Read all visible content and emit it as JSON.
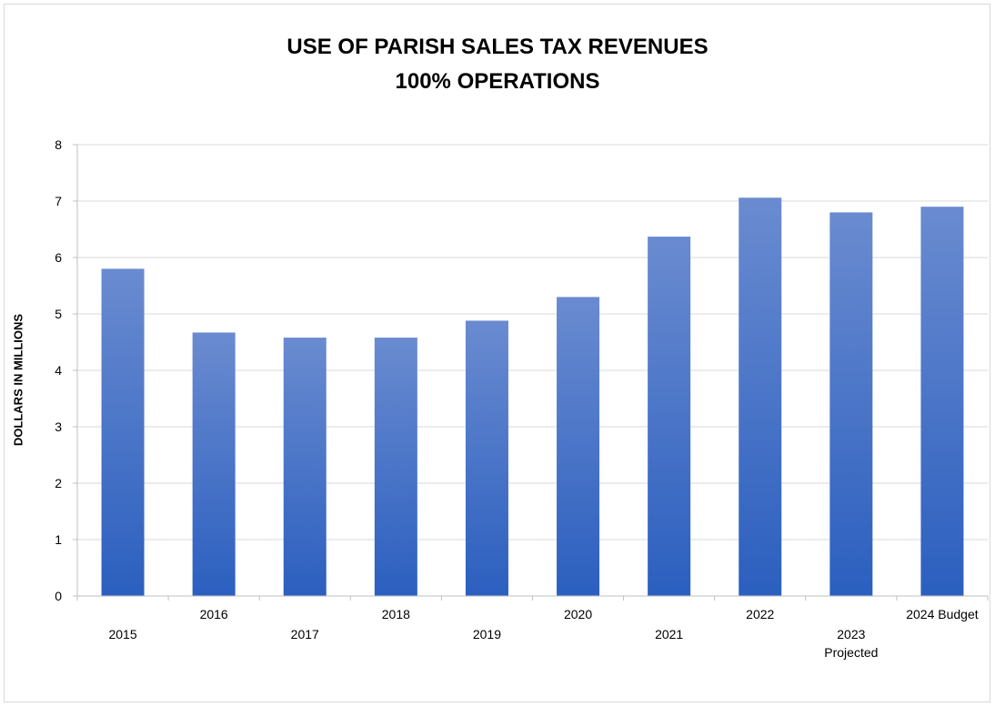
{
  "chart_data": {
    "type": "bar",
    "title": "USE OF PARISH SALES TAX REVENUES",
    "subtitle": "100% OPERATIONS",
    "xlabel": "",
    "ylabel": "DOLLARS IN MILLIONS",
    "categories": [
      [
        "2015"
      ],
      [
        "2016"
      ],
      [
        "2017"
      ],
      [
        "2018"
      ],
      [
        "2019"
      ],
      [
        "2020"
      ],
      [
        "2021"
      ],
      [
        "2022"
      ],
      [
        "2023",
        "Projected"
      ],
      [
        "2024 Budget"
      ]
    ],
    "values": [
      5.8,
      4.67,
      4.58,
      4.58,
      4.88,
      5.3,
      6.37,
      7.06,
      6.8,
      6.9
    ],
    "ylim": [
      0,
      8
    ],
    "yticks": [
      "0",
      "1",
      "2",
      "3",
      "4",
      "5",
      "6",
      "7",
      "8"
    ],
    "grid": true,
    "legend": "none",
    "colors": {
      "bar_top": "#6a8bd0",
      "bar_bottom": "#2b5fbf",
      "grid": "#d9d9d9",
      "axis": "#bfbfbf"
    }
  }
}
